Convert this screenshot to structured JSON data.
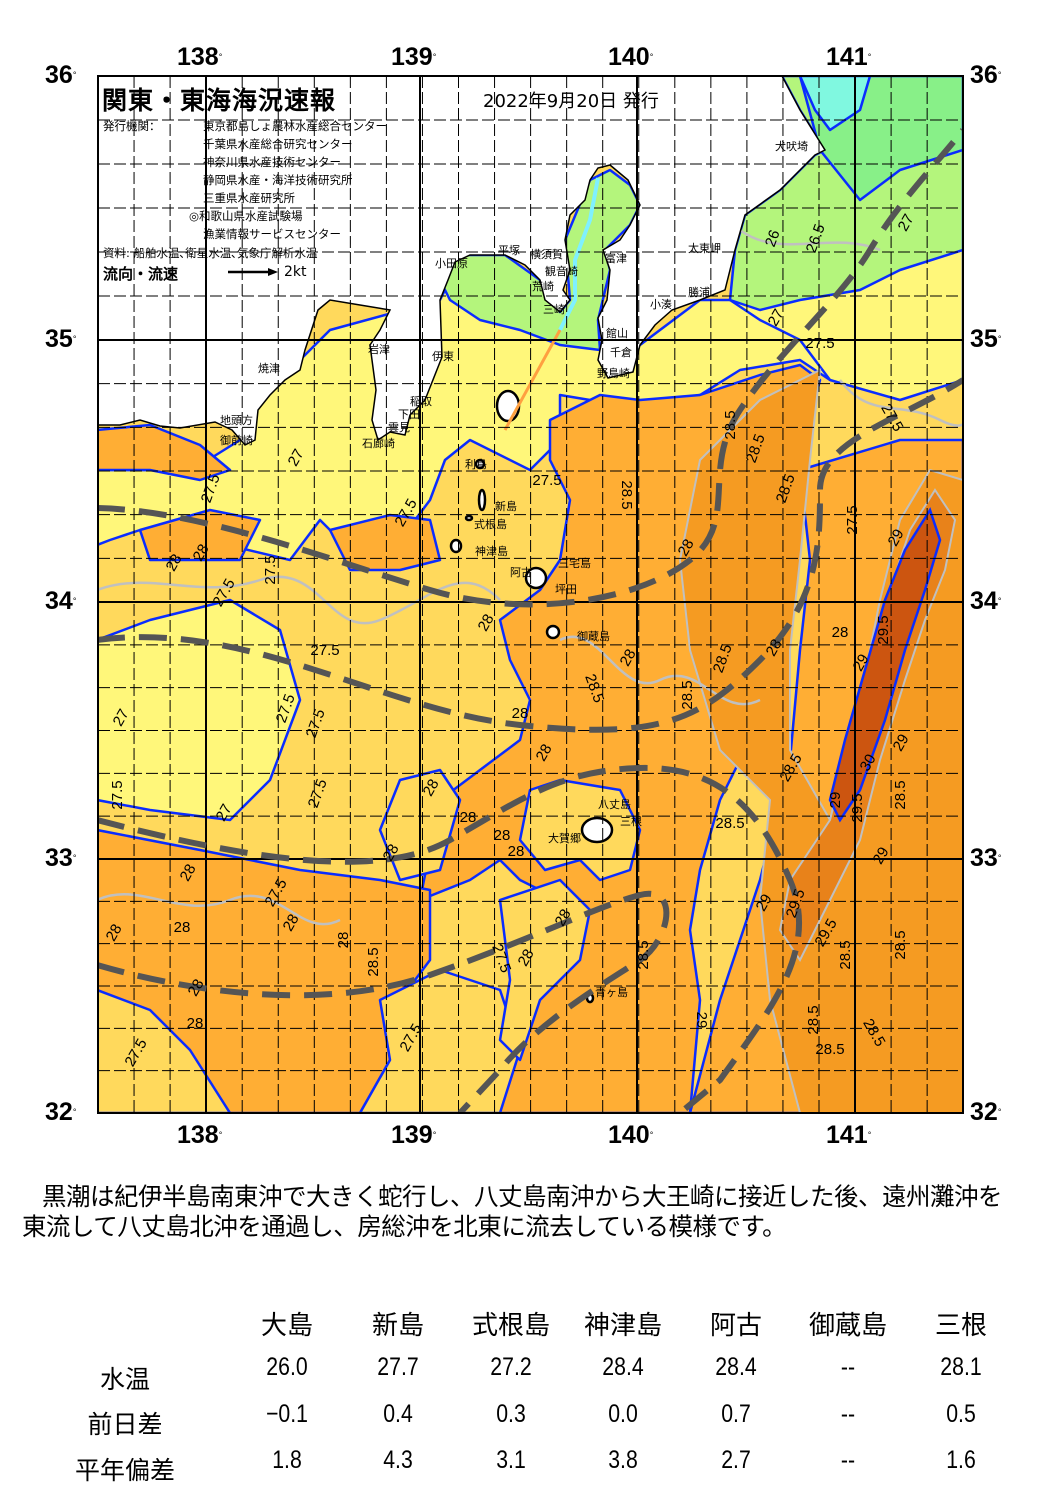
{
  "header": {
    "title": "関東・東海海況速報",
    "date": "2022年9月20日 発行",
    "issuer_label": "発行機関：",
    "issuers": [
      "東京都島しょ農林水産総合センター",
      "千葉県水産総合研究センター",
      "神奈川県水産技術センター",
      "静岡県水産・海洋技術研究所",
      "三重県水産研究所",
      "◎和歌山県水産試験場",
      "漁業情報サービスセンター"
    ],
    "source": "資料: 船舶水温､衛星水温､気象庁解析水温",
    "flow_label": "流向・流速",
    "flow_scale": "2kt"
  },
  "map": {
    "lon_ticks": [
      "138",
      "139",
      "140",
      "141"
    ],
    "lat_ticks": [
      "36",
      "35",
      "34",
      "33",
      "32"
    ],
    "degree_symbol": "°",
    "place_names": [
      "犬吠埼",
      "太東岬",
      "勝浦",
      "小湊",
      "富津",
      "横須賀",
      "観音崎",
      "平塚",
      "小田原",
      "荒崎",
      "三崎",
      "館山",
      "千倉",
      "野島崎",
      "伊東",
      "稲取",
      "下田",
      "雲見",
      "石廊崎",
      "岩津",
      "焼津",
      "地頭方",
      "御前崎",
      "利島",
      "新島",
      "式根島",
      "神津島",
      "阿古",
      "三宅島",
      "坪田",
      "御蔵島",
      "八丈島",
      "三根",
      "大賀郷",
      "青ヶ島"
    ],
    "contour_labels": [
      "27",
      "27.5",
      "28",
      "28",
      "27.5",
      "27.5",
      "27.5",
      "27.5",
      "28.5",
      "28",
      "28",
      "28",
      "28",
      "28.5",
      "28.5",
      "28.5",
      "28",
      "27.5",
      "27.5",
      "27.5",
      "27",
      "27.5",
      "27.5",
      "27",
      "28",
      "28",
      "28",
      "28",
      "28",
      "28",
      "28",
      "28",
      "28",
      "27.5",
      "28",
      "28",
      "28.5",
      "28",
      "28",
      "27.5",
      "27.5",
      "27.5",
      "28",
      "28",
      "28.5",
      "29",
      "28.5",
      "28.5",
      "28.5",
      "27.5",
      "27.5",
      "27.5",
      "27",
      "26",
      "26.5",
      "27",
      "28.5",
      "28.5",
      "28.5",
      "28",
      "29",
      "29.5",
      "29",
      "29",
      "30",
      "29.5",
      "29",
      "29",
      "29",
      "29.5",
      "29.5",
      "28.5",
      "28.5",
      "28.5",
      "28.5",
      "28.5"
    ],
    "colors": {
      "land": "#ffffff",
      "t_26": "#88f088",
      "t_26_5": "#b4f57c",
      "t_27": "#fff77a",
      "t_27_5": "#ffd95c",
      "t_28": "#ffae34",
      "t_28_5": "#f59b22",
      "t_29": "#e8821a",
      "t_29_5": "#cc5510",
      "cold": "#80f8e0",
      "contour_major": "#0a2cff",
      "contour_minor": "#c0c0c0",
      "kuroshio_axis": "#555555"
    }
  },
  "summary": "黒潮は紀伊半島南東沖で大きく蛇行し、八丈島南沖から大王崎に接近した後、遠州灘沖を東流して八丈島北沖を通過し、房総沖を北東に流去している模様です。",
  "table": {
    "columns": [
      "大島",
      "新島",
      "式根島",
      "神津島",
      "阿古",
      "御蔵島",
      "三根"
    ],
    "rows": [
      {
        "label": "水温",
        "values": [
          "26.0",
          "27.7",
          "27.2",
          "28.4",
          "28.4",
          "--",
          "28.1"
        ]
      },
      {
        "label": "前日差",
        "values": [
          "−0.1",
          "0.4",
          "0.3",
          "0.0",
          "0.7",
          "--",
          "0.5"
        ]
      },
      {
        "label": "平年偏差",
        "values": [
          "1.8",
          "4.3",
          "3.1",
          "3.8",
          "2.7",
          "--",
          "1.6"
        ]
      }
    ]
  }
}
